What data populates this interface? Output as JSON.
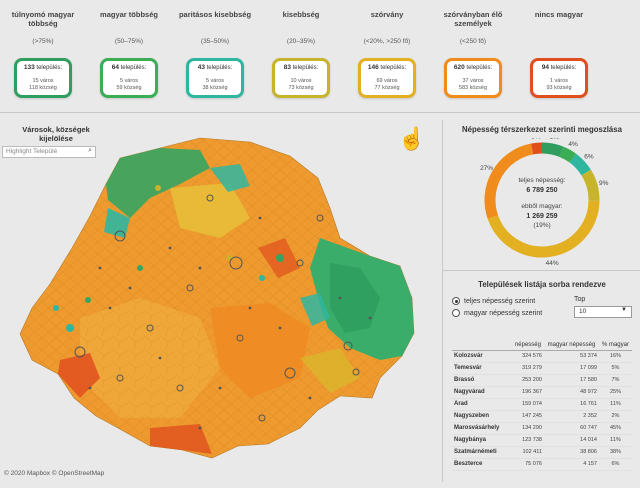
{
  "categories": [
    {
      "title": "túlnyomó magyar többség",
      "range": "(>75%)",
      "count": "133",
      "unit": "település:",
      "line1": "15 város",
      "line2": "118 község",
      "color": "#2f9e5e"
    },
    {
      "title": "magyar többség",
      "range": "(50–75%)",
      "count": "64",
      "unit": "település:",
      "line1": "5 város",
      "line2": "59 község",
      "color": "#3aad55"
    },
    {
      "title": "paritásos kisebbség",
      "range": "(35–50%)",
      "count": "43",
      "unit": "település:",
      "line1": "5 város",
      "line2": "38 község",
      "color": "#2fb6a0"
    },
    {
      "title": "kisebbség",
      "range": "(20–35%)",
      "count": "83",
      "unit": "település:",
      "line1": "10 város",
      "line2": "73 község",
      "color": "#c8b42a"
    },
    {
      "title": "szórvány",
      "range": "(<20%, >250 fő)",
      "count": "146",
      "unit": "település:",
      "line1": "69 város",
      "line2": "77 község",
      "color": "#e2b020"
    },
    {
      "title": "szórványban élő személyek",
      "range": "(<250 fő)",
      "count": "620",
      "unit": "település:",
      "line1": "37 város",
      "line2": "583 község",
      "color": "#ef8c1c"
    },
    {
      "title": "nincs magyar",
      "range": "",
      "count": "94",
      "unit": "település:",
      "line1": "1 város",
      "line2": "93 község",
      "color": "#e0501e"
    }
  ],
  "map_panel": {
    "title": "Városok, községek kijelölése",
    "search_placeholder": "Highlight Települé",
    "search_icon": "search-icon",
    "credit": "© 2020 Mapbox  © OpenStreetMap"
  },
  "donut": {
    "title": "Népesség térszerkezet szerinti megoszlása",
    "center_line1": "teljes népesség:",
    "center_value1": "6 789 250",
    "center_line2": "ebből magyar:",
    "center_value2": "1 269 259",
    "center_pct": "(19%)",
    "slices": [
      {
        "label": "6%",
        "value": 6,
        "color": "#2f9e5e"
      },
      {
        "label": "4%",
        "value": 4,
        "color": "#3aad55"
      },
      {
        "label": "6%",
        "value": 6,
        "color": "#2fb6a0"
      },
      {
        "label": "9%",
        "value": 9,
        "color": "#c8b42a"
      },
      {
        "label": "44%",
        "value": 44,
        "color": "#e2b020"
      },
      {
        "label": "27%",
        "value": 27,
        "color": "#ef8c1c"
      },
      {
        "label": "3%",
        "value": 3,
        "color": "#e0501e"
      }
    ]
  },
  "list": {
    "title": "Települések listája sorba rendezve",
    "radio1": "teljes népesség szerint",
    "radio2": "magyar népesség szerint",
    "top_label": "Top",
    "top_value": "10",
    "headers": [
      "népesség",
      "magyar népesség",
      "% magyar"
    ],
    "rows": [
      {
        "name": "Kolozsvár",
        "pop": "324 576",
        "hun": "53 374",
        "pct": "16%"
      },
      {
        "name": "Temesvár",
        "pop": "319 279",
        "hun": "17 099",
        "pct": "5%"
      },
      {
        "name": "Brassó",
        "pop": "253 200",
        "hun": "17 580",
        "pct": "7%"
      },
      {
        "name": "Nagyvárad",
        "pop": "196 367",
        "hun": "48 972",
        "pct": "25%"
      },
      {
        "name": "Arad",
        "pop": "159 074",
        "hun": "16 761",
        "pct": "11%"
      },
      {
        "name": "Nagyszeben",
        "pop": "147 245",
        "hun": "2 352",
        "pct": "2%"
      },
      {
        "name": "Marosvásárhely",
        "pop": "134 290",
        "hun": "60 747",
        "pct": "45%"
      },
      {
        "name": "Nagybánya",
        "pop": "123 738",
        "hun": "14 014",
        "pct": "11%"
      },
      {
        "name": "Szatmárnémeti",
        "pop": "102 411",
        "hun": "38 806",
        "pct": "38%"
      },
      {
        "name": "Beszterce",
        "pop": "75 076",
        "hun": "4 157",
        "pct": "6%"
      }
    ]
  }
}
